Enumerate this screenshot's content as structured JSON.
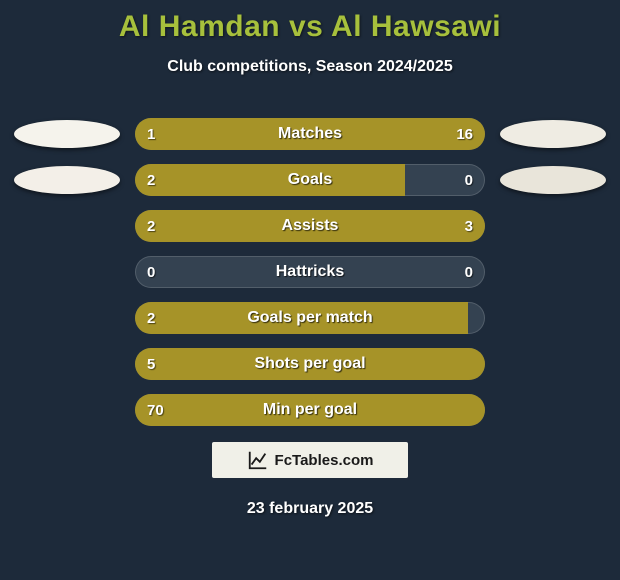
{
  "background_color": "#1d2a3a",
  "title": {
    "player_a": "Al Hamdan",
    "vs": "vs",
    "player_b": "Al Hawsawi",
    "color": "#a7c03c"
  },
  "subtitle": "Club competitions, Season 2024/2025",
  "row_empty_color": "#344251",
  "date_text": "23 february 2025",
  "watermark_text": "FcTables.com",
  "side_ellipses": {
    "left": [
      "#f5f3ec",
      "#f3efe8"
    ],
    "right": [
      "#efece3",
      "#e9e5da"
    ]
  },
  "rows": [
    {
      "label": "Matches",
      "left_value": "1",
      "right_value": "16",
      "left_pct": 19,
      "right_pct": 81,
      "left_color": "#a69328",
      "right_color": "#a69328"
    },
    {
      "label": "Goals",
      "left_value": "2",
      "right_value": "0",
      "left_pct": 77,
      "right_pct": 0,
      "left_color": "#a69328",
      "right_color": "#a69328"
    },
    {
      "label": "Assists",
      "left_value": "2",
      "right_value": "3",
      "left_pct": 40,
      "right_pct": 60,
      "left_color": "#a69328",
      "right_color": "#a69328"
    },
    {
      "label": "Hattricks",
      "left_value": "0",
      "right_value": "0",
      "left_pct": 0,
      "right_pct": 0,
      "left_color": "#a69328",
      "right_color": "#a69328"
    },
    {
      "label": "Goals per match",
      "left_value": "2",
      "right_value": "",
      "left_pct": 95,
      "right_pct": 0,
      "left_color": "#a69328",
      "right_color": "#a69328"
    },
    {
      "label": "Shots per goal",
      "left_value": "5",
      "right_value": "",
      "left_pct": 100,
      "right_pct": 0,
      "left_color": "#a69328",
      "right_color": "#a69328"
    },
    {
      "label": "Min per goal",
      "left_value": "70",
      "right_value": "",
      "left_pct": 100,
      "right_pct": 0,
      "left_color": "#a69328",
      "right_color": "#a69328"
    }
  ]
}
